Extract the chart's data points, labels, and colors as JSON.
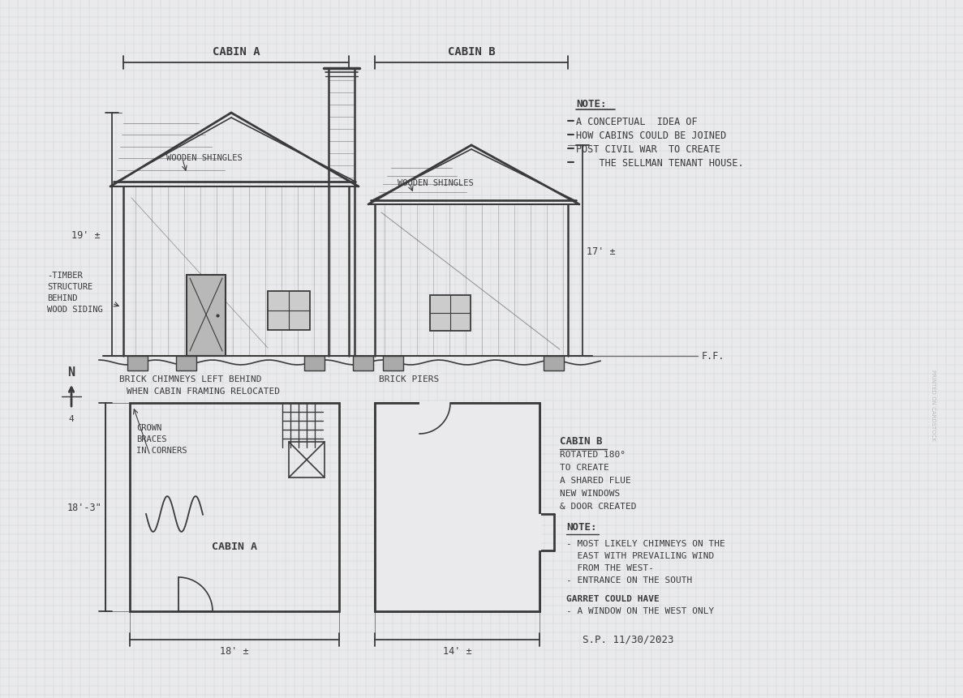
{
  "bg_color": "#eaeaec",
  "grid_color": "#c5c7cc",
  "line_color": "#3a3a3a",
  "note1_title": "NOTE:",
  "note1_lines": [
    "A CONCEPTUAL  IDEA OF",
    "HOW CABINS COULD BE JOINED",
    "POST CIVIL WAR  TO CREATE",
    "    THE SELLMAN TENANT HOUSE."
  ],
  "note2_title": "NOTE:",
  "note2_lines": [
    "- MOST LIKELY CHIMNEYS ON THE",
    "  EAST WITH PREVAILING WIND",
    "  FROM THE WEST-",
    "- ENTRANCE ON THE SOUTH"
  ],
  "note3_lines": [
    "GARRET COULD HAVE",
    "- A WINDOW ON THE WEST ONLY"
  ],
  "date_sig": "S.P. 11/30/2023",
  "cabin_a_label": "CABIN A",
  "cabin_b_label": "CABIN B",
  "elev_label_a": "WOODEN SHINGLES",
  "elev_label_b": "WOODEN SHINGLES",
  "timber_label": [
    "-TIMBER",
    "STRUCTURE",
    "BEHIND",
    "WOOD SIDING"
  ],
  "dim_19": "19' ±",
  "dim_17": "17' ±",
  "dim_18_3": "18'-3\"",
  "dim_18": "18' ±",
  "dim_14": "14' ±",
  "ff_label": "F.F.",
  "brick_piers": "BRICK PIERS",
  "chimney_note_1": "BRICK CHIMNEYS LEFT BEHIND",
  "chimney_note_2": "WHEN CABIN FRAMING RELOCATED",
  "cabin_a_floor": "CABIN A",
  "cabin_b_floor_lines": [
    "CABIN B",
    "ROTATED 180°",
    "TO CREATE",
    "A SHARED FLUE",
    "NEW WINDOWS",
    "& DOOR CREATED"
  ],
  "crown_braces_lines": [
    "CROWN",
    "BRACES",
    "IN CORNERS"
  ],
  "north_label": "N",
  "north_sub": "4"
}
